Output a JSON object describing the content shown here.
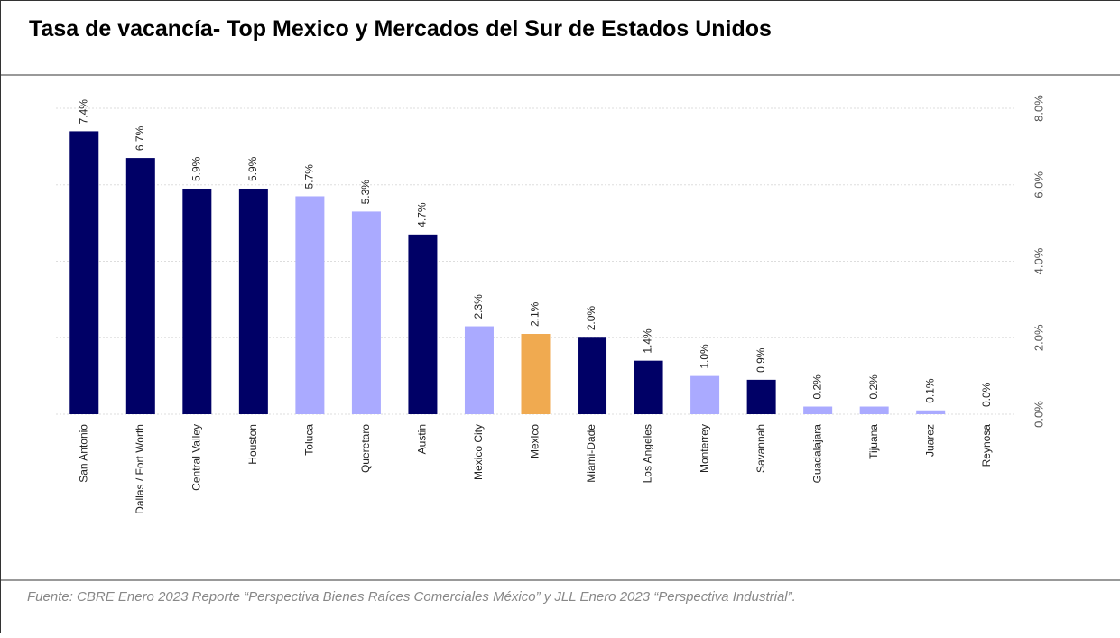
{
  "chart_data": {
    "type": "bar",
    "title": "Tasa de vacancía- Top Mexico y Mercados del Sur de Estados Unidos",
    "source": "Fuente: CBRE Enero 2023 Reporte “Perspectiva Bienes Raíces Comerciales México” y JLL Enero 2023 “Perspectiva Industrial”.",
    "categories": [
      "San Antonio",
      "Dallas / Fort Worth",
      "Central Valley",
      "Houston",
      "Toluca",
      "Queretaro",
      "Austin",
      "Mexico City",
      "Mexico",
      "Miami-Dade",
      "Los Angeles",
      "Monterrey",
      "Savannah",
      "Guadalajara",
      "Tijuana",
      "Juarez",
      "Reynosa"
    ],
    "values": [
      7.4,
      6.7,
      5.9,
      5.9,
      5.7,
      5.3,
      4.7,
      2.3,
      2.1,
      2.0,
      1.4,
      1.0,
      0.9,
      0.2,
      0.2,
      0.1,
      0.0
    ],
    "value_labels": [
      "7.4%",
      "6.7%",
      "5.9%",
      "5.9%",
      "5.7%",
      "5.3%",
      "4.7%",
      "2.3%",
      "2.1%",
      "2.0%",
      "1.4%",
      "1.0%",
      "0.9%",
      "0.2%",
      "0.2%",
      "0.1%",
      "0.0%"
    ],
    "colors": [
      "#000066",
      "#000066",
      "#000066",
      "#000066",
      "#aaaaff",
      "#aaaaff",
      "#000066",
      "#aaaaff",
      "#f0aa50",
      "#000066",
      "#000066",
      "#aaaaff",
      "#000066",
      "#aaaaff",
      "#aaaaff",
      "#aaaaff",
      "#aaaaff"
    ],
    "ylim": [
      0,
      8
    ],
    "yticks": [
      {
        "value": 0,
        "label": "0.0%"
      },
      {
        "value": 2,
        "label": "2.0%"
      },
      {
        "value": 4,
        "label": "4.0%"
      },
      {
        "value": 6,
        "label": "6.0%"
      },
      {
        "value": 8,
        "label": "8.0%"
      }
    ],
    "grid": true,
    "y_axis_side": "right"
  }
}
